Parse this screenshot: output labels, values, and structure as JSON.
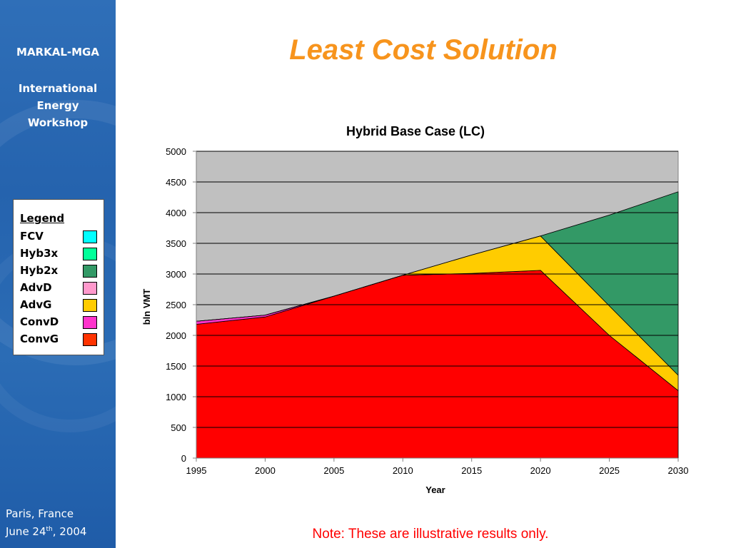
{
  "sidebar": {
    "title": "MARKAL-MGA",
    "subtitle_lines": [
      "International",
      "Energy",
      "Workshop"
    ],
    "legend": {
      "title": "Legend",
      "items": [
        {
          "label": "FCV",
          "color": "#00ffff"
        },
        {
          "label": "Hyb3x",
          "color": "#00ff99"
        },
        {
          "label": "Hyb2x",
          "color": "#339966"
        },
        {
          "label": "AdvD",
          "color": "#ff99cc"
        },
        {
          "label": "AdvG",
          "color": "#ffcc00"
        },
        {
          "label": "ConvD",
          "color": "#ff33cc"
        },
        {
          "label": "ConvG",
          "color": "#ff3300"
        }
      ]
    },
    "footer_location": "Paris, France",
    "footer_date_prefix": "June 24",
    "footer_date_sup": "th",
    "footer_date_suffix": ", 2004"
  },
  "page_title": "Least Cost Solution",
  "note": "Note: These are illustrative results only.",
  "chart_data": {
    "type": "area",
    "stacked": true,
    "title": "Hybrid Base Case (LC)",
    "xlabel": "Year",
    "ylabel": "bln VMT",
    "x": [
      1995,
      2000,
      2005,
      2010,
      2015,
      2020,
      2025,
      2030
    ],
    "ylim": [
      0,
      5000
    ],
    "yticks": [
      0,
      500,
      1000,
      1500,
      2000,
      2500,
      3000,
      3500,
      4000,
      4500,
      5000
    ],
    "grid": true,
    "plot_background": "#c0c0c0",
    "series": [
      {
        "name": "ConvG",
        "color": "#ff0000",
        "values": [
          2180,
          2300,
          2640,
          2980,
          3010,
          3060,
          2000,
          1100
        ]
      },
      {
        "name": "ConvD",
        "color": "#ff33cc",
        "values": [
          50,
          30,
          0,
          0,
          0,
          0,
          0,
          0
        ]
      },
      {
        "name": "AdvD",
        "color": "#ff99cc",
        "values": [
          0,
          0,
          0,
          0,
          0,
          0,
          0,
          0
        ]
      },
      {
        "name": "AdvG",
        "color": "#ffcc00",
        "values": [
          0,
          0,
          0,
          0,
          300,
          560,
          480,
          250
        ]
      },
      {
        "name": "Hyb2x",
        "color": "#339966",
        "values": [
          0,
          0,
          0,
          0,
          0,
          0,
          1480,
          2990
        ]
      },
      {
        "name": "Hyb3x",
        "color": "#00ff99",
        "values": [
          0,
          0,
          0,
          0,
          0,
          0,
          0,
          0
        ]
      },
      {
        "name": "FCV",
        "color": "#00ffff",
        "values": [
          0,
          0,
          0,
          0,
          0,
          0,
          0,
          0
        ]
      }
    ]
  }
}
